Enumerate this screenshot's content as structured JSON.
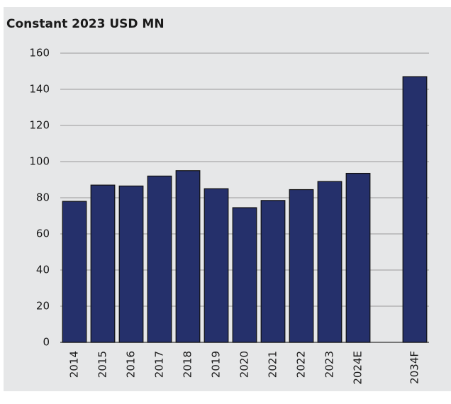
{
  "chart_data": {
    "type": "bar",
    "title": "Constant 2023 USD MN",
    "categories": [
      "2014",
      "2015",
      "2016",
      "2017",
      "2018",
      "2019",
      "2020",
      "2021",
      "2022",
      "2023",
      "2024E",
      null,
      "2034F"
    ],
    "values": [
      78,
      87,
      86.5,
      92,
      95,
      85,
      74.5,
      78.5,
      84.5,
      89,
      93.5,
      null,
      147
    ],
    "color": "#25306b",
    "ylim": [
      0,
      160
    ],
    "yticks": [
      0,
      20,
      40,
      60,
      80,
      100,
      120,
      140,
      160
    ],
    "grid": true
  }
}
